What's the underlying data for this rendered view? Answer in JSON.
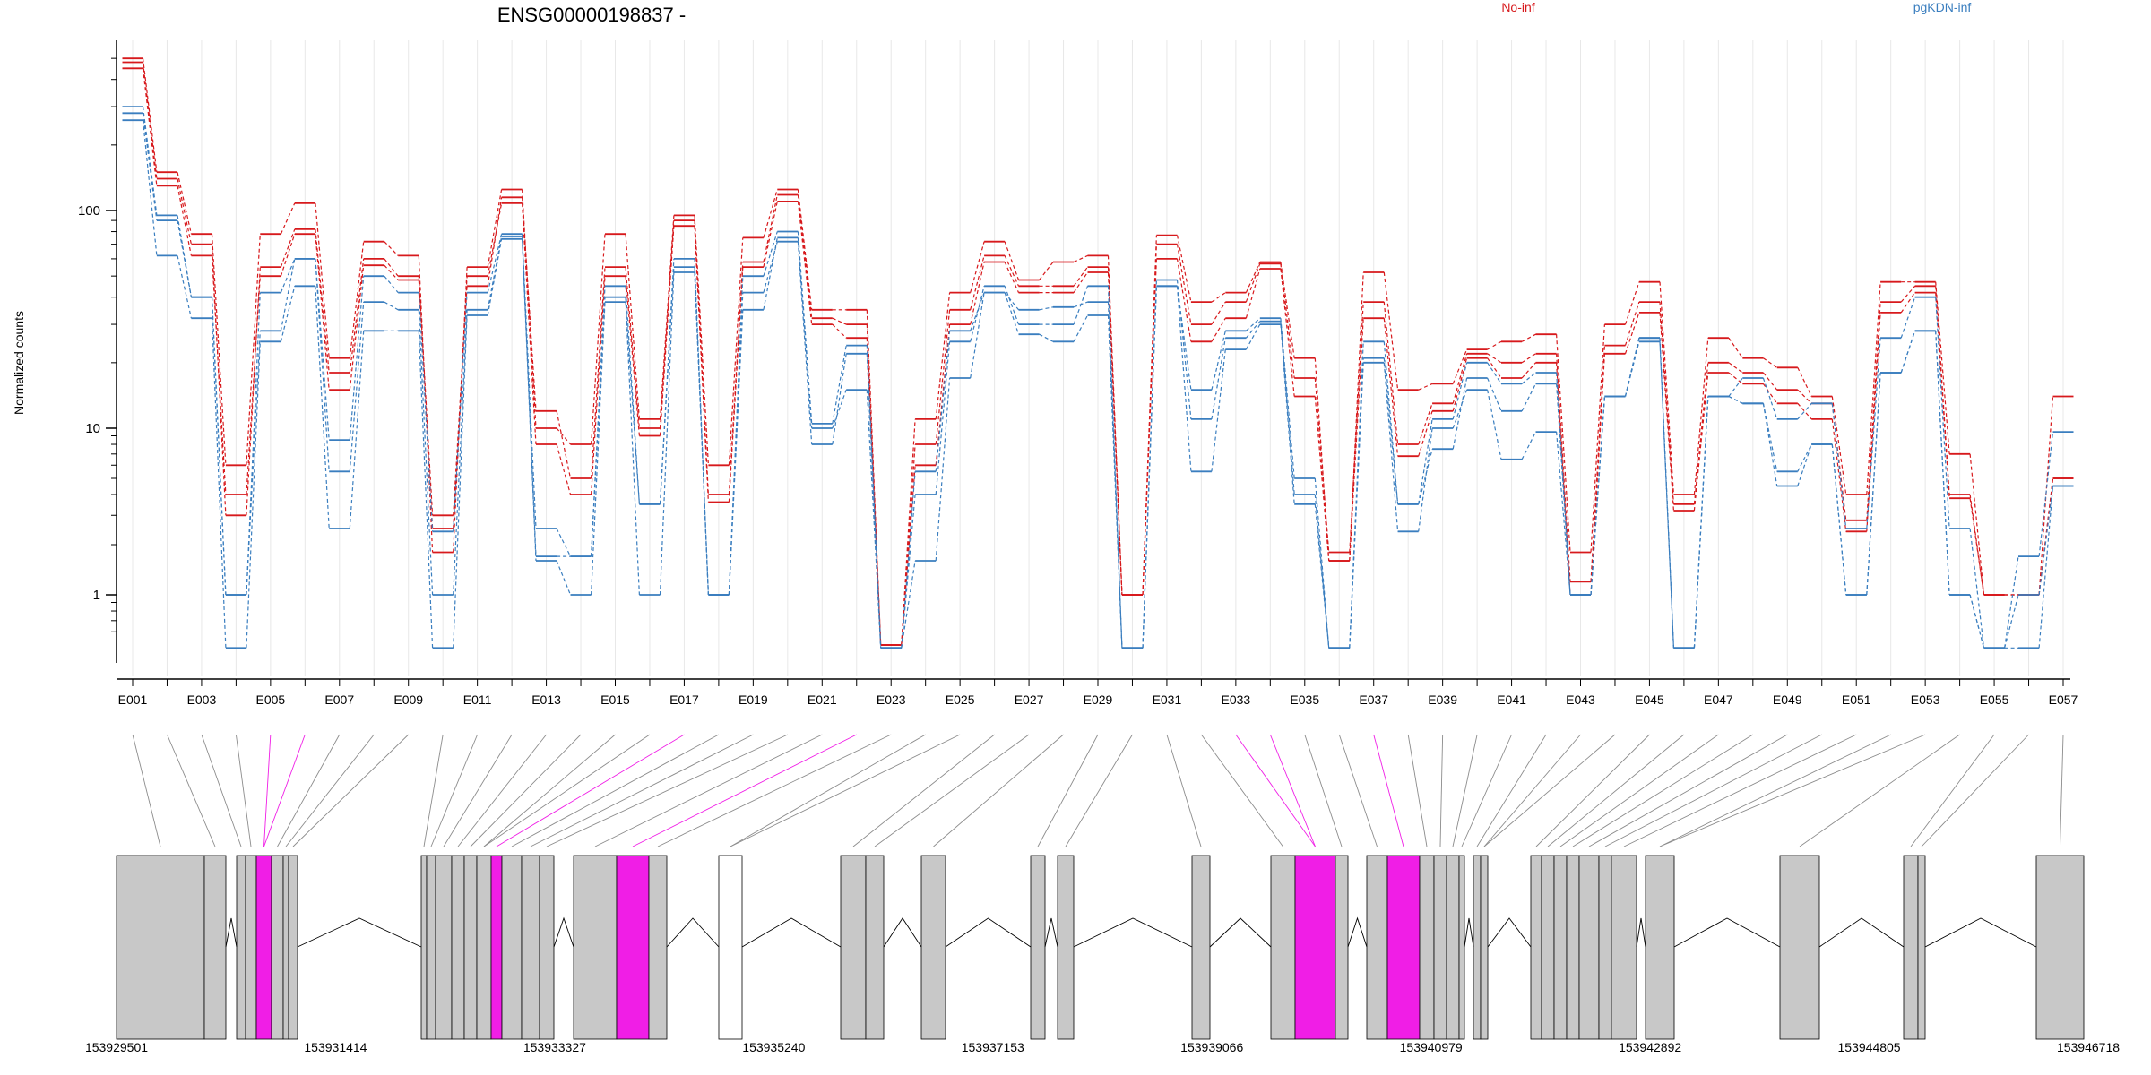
{
  "chart_data": {
    "type": "line",
    "title": "ENSG00000198837 -",
    "ylabel": "Normalized counts",
    "yscale": "log",
    "ylim": [
      0.5,
      600
    ],
    "yticks": [
      1,
      10,
      100
    ],
    "legend": [
      {
        "name": "No-inf",
        "color": "#d7191c"
      },
      {
        "name": "pgKDN-inf",
        "color": "#3a7ebf"
      }
    ],
    "exon_labels": [
      "E001",
      "E003",
      "E005",
      "E007",
      "E009",
      "E011",
      "E013",
      "E015",
      "E017",
      "E019",
      "E021",
      "E023",
      "E025",
      "E027",
      "E029",
      "E031",
      "E033",
      "E035",
      "E037",
      "E039",
      "E041",
      "E043",
      "E045",
      "E047",
      "E049",
      "E051",
      "E053",
      "E055",
      "E057"
    ],
    "genomic_ticks": [
      "153929501",
      "153931414",
      "153933327",
      "153935240",
      "153937153",
      "153939066",
      "153940979",
      "153942892",
      "153944805",
      "153946718"
    ],
    "genomic_range": [
      153929501,
      153946718
    ],
    "highlight_color": "#f01ee6",
    "series": [
      {
        "name": "No-inf",
        "color": "#d7191c",
        "values": [
          480,
          140,
          70,
          3,
          55,
          82,
          18,
          60,
          50,
          3,
          45,
          115,
          12,
          5,
          55,
          10,
          90,
          4,
          58,
          118,
          32,
          30,
          0.5,
          8,
          35,
          62,
          45,
          45,
          55,
          1,
          70,
          30,
          38,
          57,
          17,
          1.8,
          38,
          8,
          13,
          22,
          20,
          22,
          1.2,
          24,
          38,
          3.5,
          20,
          18,
          15,
          13,
          2.8,
          38,
          45,
          4,
          1,
          1,
          5
        ]
      },
      {
        "name": "No-inf",
        "color": "#d7191c",
        "values": [
          450,
          130,
          62,
          4,
          50,
          78,
          15,
          56,
          48,
          2.5,
          50,
          108,
          8,
          4,
          50,
          9,
          85,
          3.6,
          55,
          110,
          30,
          26,
          0.5,
          6,
          30,
          58,
          42,
          42,
          52,
          1,
          60,
          25,
          32,
          54,
          14,
          1.6,
          32,
          6.8,
          12,
          21,
          17,
          20,
          1,
          22,
          34,
          3.2,
          18,
          16,
          13,
          11,
          2.4,
          34,
          42,
          3.8,
          1,
          1,
          5
        ]
      },
      {
        "name": "No-inf",
        "color": "#d7191c",
        "values": [
          500,
          150,
          78,
          6,
          78,
          108,
          21,
          72,
          62,
          1.8,
          55,
          125,
          10,
          8,
          78,
          11,
          95,
          6,
          75,
          125,
          35,
          35,
          0.5,
          11,
          42,
          72,
          48,
          58,
          62,
          1,
          77,
          38,
          42,
          58,
          21,
          1.6,
          52,
          15,
          16,
          23,
          25,
          27,
          1.8,
          30,
          47,
          4,
          26,
          21,
          19,
          14,
          4,
          47,
          47,
          7,
          1,
          1,
          14
        ]
      },
      {
        "name": "pgKDN-inf",
        "color": "#3a7ebf",
        "values": [
          300,
          95,
          40,
          1,
          42,
          60,
          8.5,
          50,
          42,
          2.4,
          42,
          78,
          2.5,
          1.7,
          45,
          3.5,
          60,
          1,
          50,
          80,
          10.5,
          24,
          0.48,
          5.5,
          28,
          42,
          35,
          36,
          38,
          0.48,
          45,
          15,
          28,
          32,
          5,
          0.48,
          25,
          3.5,
          11,
          20,
          16,
          18,
          1,
          14,
          26,
          0.48,
          14,
          17,
          11,
          13,
          2.5,
          26,
          40,
          2.5,
          0.48,
          1,
          4.5
        ]
      },
      {
        "name": "pgKDN-inf",
        "color": "#3a7ebf",
        "values": [
          280,
          90,
          40,
          1,
          28,
          60,
          5.5,
          38,
          35,
          1,
          35,
          76,
          1.7,
          1.7,
          40,
          1,
          52,
          1,
          35,
          75,
          10,
          15,
          0.48,
          4,
          25,
          45,
          30,
          30,
          45,
          0.48,
          48,
          11,
          26,
          31,
          4,
          0.48,
          21,
          3.5,
          7.5,
          17,
          12,
          16,
          1,
          14,
          25,
          0.48,
          14,
          13,
          5.5,
          8,
          1,
          18,
          28,
          1,
          0.48,
          0.48,
          4.5
        ]
      },
      {
        "name": "pgKDN-inf",
        "color": "#3a7ebf",
        "values": [
          260,
          62,
          32,
          0.48,
          25,
          45,
          2.5,
          28,
          28,
          0.48,
          33,
          74,
          1.6,
          1,
          38,
          3.5,
          55,
          1,
          42,
          72,
          8,
          22,
          0.48,
          1.6,
          17,
          42,
          27,
          25,
          33,
          0.48,
          45,
          5.5,
          23,
          30,
          3.5,
          0.48,
          20,
          2.4,
          10,
          15,
          6.5,
          9.5,
          1,
          14,
          26,
          0.48,
          14,
          13,
          4.5,
          8,
          1,
          18,
          28,
          1,
          0.48,
          1.7,
          9.5
        ]
      }
    ]
  }
}
